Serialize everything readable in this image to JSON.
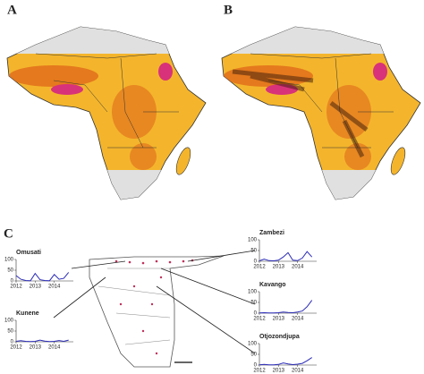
{
  "panels": {
    "a": "A",
    "b": "B",
    "c": "C"
  },
  "chart_data": [
    {
      "type": "line",
      "title": "Omusati",
      "x": [
        2012,
        2012.25,
        2012.5,
        2012.75,
        2013,
        2013.25,
        2013.5,
        2013.75,
        2014,
        2014.25,
        2014.5,
        2014.75
      ],
      "series": [
        {
          "color": "#2b2bb8",
          "values": [
            25,
            8,
            2,
            1,
            35,
            6,
            2,
            1,
            30,
            8,
            12,
            40
          ]
        }
      ],
      "xlim": [
        2012,
        2015
      ],
      "xticks": [
        2012,
        2013,
        2014
      ],
      "ylim": [
        0,
        100
      ],
      "yticks": [
        0,
        50,
        100
      ]
    },
    {
      "type": "line",
      "title": "Kunene",
      "x": [
        2012,
        2012.25,
        2012.5,
        2012.75,
        2013,
        2013.25,
        2013.5,
        2013.75,
        2014,
        2014.25,
        2014.5,
        2014.75
      ],
      "series": [
        {
          "color": "#2b2bb8",
          "values": [
            2,
            5,
            2,
            1,
            2,
            8,
            3,
            1,
            2,
            6,
            2,
            8
          ]
        }
      ],
      "xlim": [
        2012,
        2015
      ],
      "xticks": [
        2012,
        2013,
        2014
      ],
      "ylim": [
        0,
        100
      ],
      "yticks": [
        0,
        50,
        100
      ]
    },
    {
      "type": "line",
      "title": "Zambezi",
      "x": [
        2012,
        2012.25,
        2012.5,
        2012.75,
        2013,
        2013.25,
        2013.5,
        2013.75,
        2014,
        2014.25,
        2014.5,
        2014.75
      ],
      "series": [
        {
          "color": "#2b2bb8",
          "values": [
            2,
            10,
            3,
            2,
            5,
            20,
            40,
            5,
            3,
            15,
            45,
            20
          ]
        }
      ],
      "xlim": [
        2012,
        2015
      ],
      "xticks": [
        2012,
        2013,
        2014
      ],
      "ylim": [
        0,
        100
      ],
      "yticks": [
        0,
        50,
        100
      ]
    },
    {
      "type": "line",
      "title": "Kavango",
      "x": [
        2012,
        2012.25,
        2012.5,
        2012.75,
        2013,
        2013.25,
        2013.5,
        2013.75,
        2014,
        2014.25,
        2014.5,
        2014.75
      ],
      "series": [
        {
          "color": "#2b2bb8",
          "values": [
            1,
            2,
            1,
            1,
            2,
            5,
            3,
            2,
            5,
            10,
            30,
            60
          ]
        }
      ],
      "xlim": [
        2012,
        2015
      ],
      "xticks": [
        2012,
        2013,
        2014
      ],
      "ylim": [
        0,
        100
      ],
      "yticks": [
        0,
        50,
        100
      ]
    },
    {
      "type": "line",
      "title": "Otjozondjupa",
      "x": [
        2012,
        2012.25,
        2012.5,
        2012.75,
        2013,
        2013.25,
        2013.5,
        2013.75,
        2014,
        2014.25,
        2014.5,
        2014.75
      ],
      "series": [
        {
          "color": "#2b2bb8",
          "values": [
            1,
            3,
            1,
            1,
            3,
            10,
            5,
            2,
            4,
            8,
            20,
            35
          ]
        }
      ],
      "xlim": [
        2012,
        2015
      ],
      "xticks": [
        2012,
        2013,
        2014
      ],
      "ylim": [
        0,
        100
      ],
      "yticks": [
        0,
        50,
        100
      ]
    }
  ]
}
